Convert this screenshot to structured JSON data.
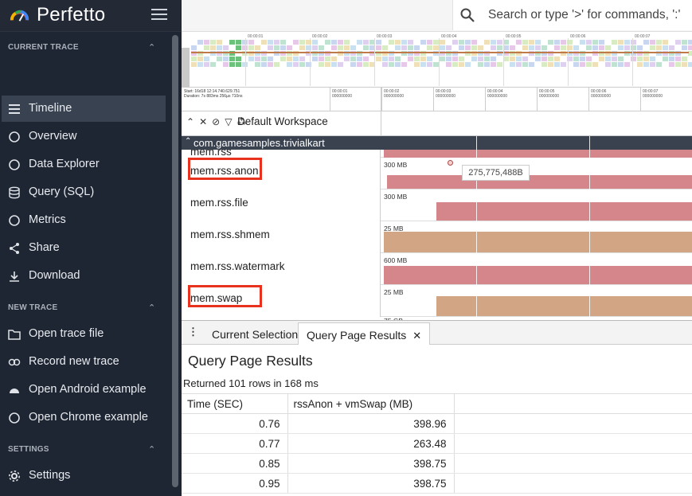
{
  "app": {
    "brand": "Perfetto"
  },
  "sidebar": {
    "sections": [
      {
        "title": "CURRENT TRACE",
        "items": [
          {
            "label": "Timeline",
            "icon": "timeline-icon",
            "active": true
          },
          {
            "label": "Overview",
            "icon": "info-icon"
          },
          {
            "label": "Data Explorer",
            "icon": "query-stats-icon"
          },
          {
            "label": "Query (SQL)",
            "icon": "database-icon"
          },
          {
            "label": "Metrics",
            "icon": "speed-icon"
          },
          {
            "label": "Share",
            "icon": "share-icon"
          },
          {
            "label": "Download",
            "icon": "download-icon"
          }
        ]
      },
      {
        "title": "NEW TRACE",
        "items": [
          {
            "label": "Open trace file",
            "icon": "folder-open-icon"
          },
          {
            "label": "Record new trace",
            "icon": "record-icon"
          },
          {
            "label": "Open Android example",
            "icon": "android-icon"
          },
          {
            "label": "Open Chrome example",
            "icon": "globe-icon"
          }
        ]
      },
      {
        "title": "SETTINGS",
        "items": [
          {
            "label": "Settings",
            "icon": "gear-icon"
          }
        ]
      }
    ]
  },
  "search": {
    "placeholder": "Search or type '>' for commands, ':'"
  },
  "overview": {
    "ticks": [
      "00:00:01",
      "00:00:02",
      "00:00:03",
      "00:00:04",
      "00:00:05",
      "00:00:06",
      "00:00:07"
    ]
  },
  "timeaxis": {
    "start": "Start: 16d18 12:14.740.629.751",
    "duration": "Duration: 7s 883ms 256µs 710ns",
    "ticks": [
      [
        "00:00:01",
        "000000000"
      ],
      [
        "00:00:02",
        "000000000"
      ],
      [
        "00:00:03",
        "000000000"
      ],
      [
        "00:00:04",
        "000000000"
      ],
      [
        "00:00:05",
        "000000000"
      ],
      [
        "00:00:06",
        "000000000"
      ],
      [
        "00:00:07",
        "000000000"
      ]
    ]
  },
  "workspace": {
    "label": "Default Workspace"
  },
  "tracks": {
    "group": "com.gamesamples.trivialkart",
    "top_partial": "mem.rss",
    "items": [
      {
        "name": "mem.rss.anon",
        "scale": "300 MB",
        "color": "#d4868a",
        "highlighted": true
      },
      {
        "name": "mem.rss.file",
        "scale": "300 MB",
        "color": "#d4868a",
        "highlighted": false
      },
      {
        "name": "mem.rss.shmem",
        "scale": "25 MB",
        "color": "#d2a684",
        "highlighted": false
      },
      {
        "name": "mem.rss.watermark",
        "scale": "600 MB",
        "color": "#d4868a",
        "highlighted": false
      },
      {
        "name": "mem.swap",
        "scale": "25 MB",
        "color": "#d2a684",
        "highlighted": true
      }
    ],
    "partial_scale": "75 GB",
    "tooltip": "275,775,488B"
  },
  "bottom": {
    "tabs": [
      {
        "label": "Current Selection"
      },
      {
        "label": "Query Page Results",
        "active": true,
        "closable": "✕"
      }
    ],
    "title": "Query Page Results",
    "info": "Returned 101 rows in 168 ms",
    "columns": [
      "Time (SEC)",
      "rssAnon + vmSwap (MB)"
    ],
    "rows": [
      [
        "0.76",
        "398.96"
      ],
      [
        "0.77",
        "263.48"
      ],
      [
        "0.85",
        "398.75"
      ],
      [
        "0.95",
        "398.75"
      ]
    ]
  },
  "colors": {
    "sidebar_bg": "#1f2633",
    "highlight": "#e8321d",
    "track_red": "#d4868a",
    "track_tan": "#d2a684"
  }
}
